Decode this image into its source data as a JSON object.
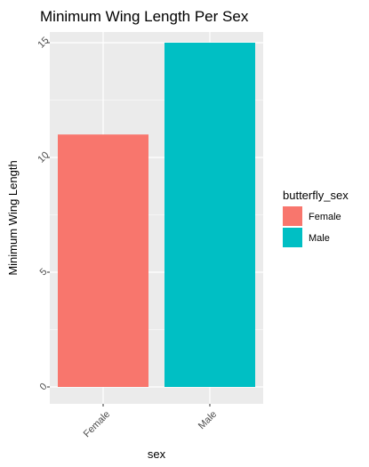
{
  "chart_data": {
    "type": "bar",
    "title": "Minimum Wing Length Per Sex",
    "xlabel": "sex",
    "ylabel": "Minimum Wing Length",
    "categories": [
      "Female",
      "Male"
    ],
    "values": [
      11,
      15
    ],
    "colors": [
      "#F8766D",
      "#00BFC4"
    ],
    "ylim": [
      0,
      15.75
    ],
    "y_ticks": [
      0,
      5,
      10,
      15
    ],
    "y_tick_labels": [
      "0",
      "5",
      "10",
      "15"
    ],
    "grid": true,
    "panel_background": "#EBEBEB",
    "grid_color": "#FFFFFF",
    "legend": {
      "title": "butterfly_sex",
      "position": "right",
      "entries": [
        {
          "label": "Female",
          "color": "#F8766D"
        },
        {
          "label": "Male",
          "color": "#00BFC4"
        }
      ]
    }
  }
}
